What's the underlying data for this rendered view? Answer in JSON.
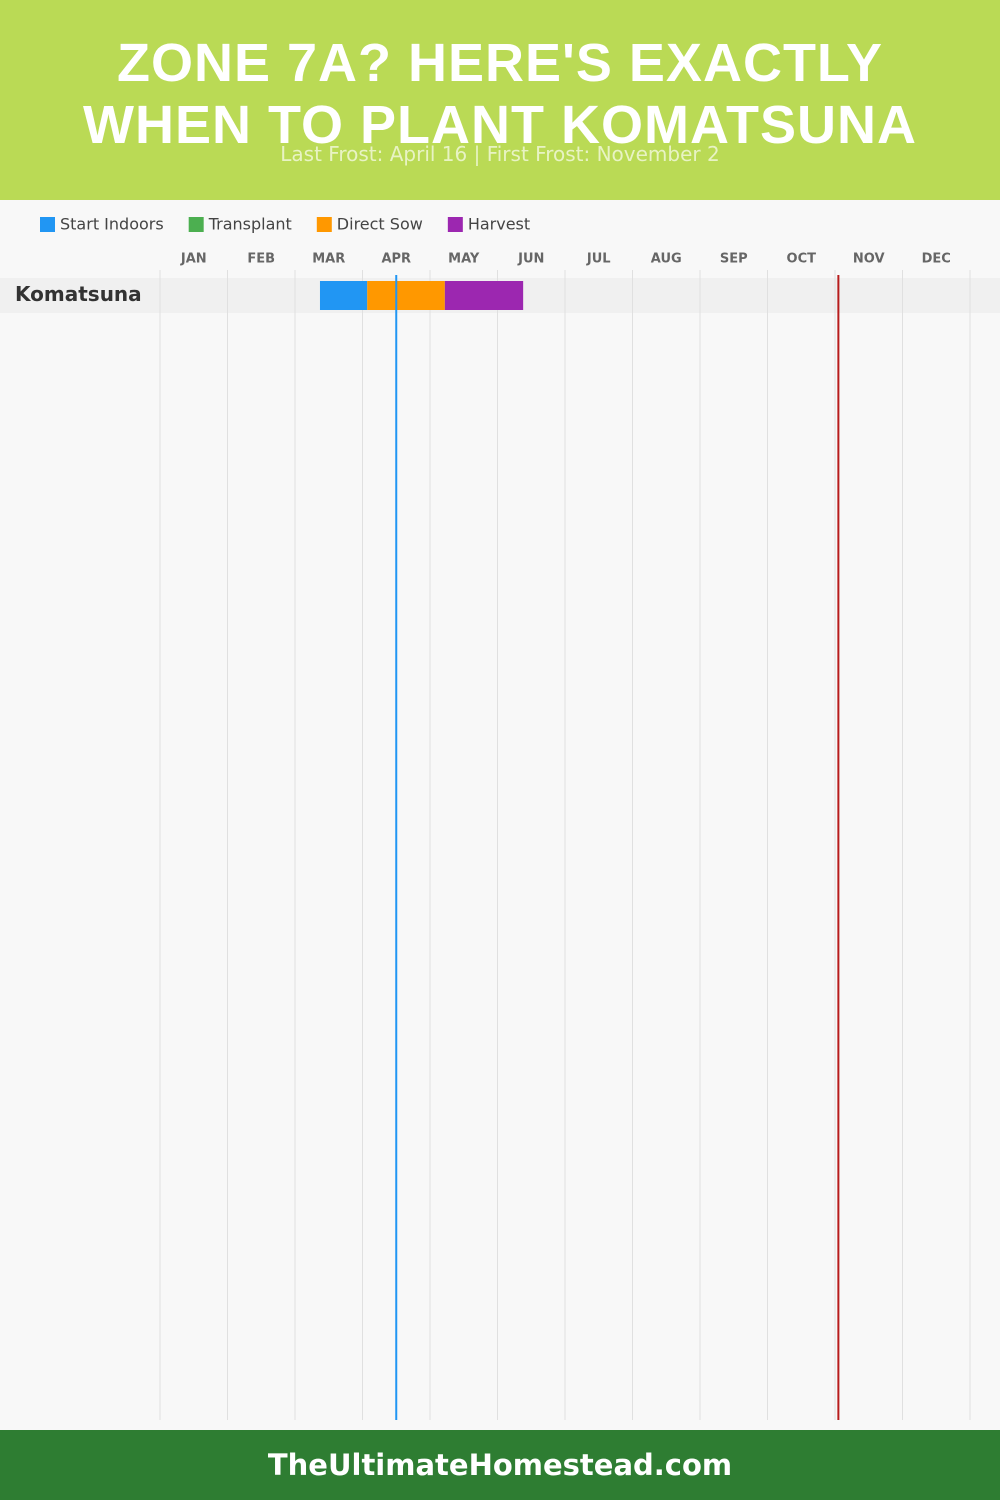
{
  "chart_data": {
    "type": "gantt",
    "title": "ZONE 7A? HERE'S EXACTLY WHEN TO PLANT KOMATSUNA",
    "subtitle": "Last Frost: April 16 | First Frost: November 2",
    "months": [
      "JAN",
      "FEB",
      "MAR",
      "APR",
      "MAY",
      "JUN",
      "JUL",
      "AUG",
      "SEP",
      "OCT",
      "NOV",
      "DEC"
    ],
    "xlim": [
      0,
      12
    ],
    "categories": [
      "Komatsuna"
    ],
    "series": [
      {
        "name": "Start Indoors",
        "color": "#2196f3",
        "values": [
          [
            2.37,
            3.07
          ]
        ]
      },
      {
        "name": "Transplant",
        "color": "#4caf50",
        "values": [
          null
        ]
      },
      {
        "name": "Direct Sow",
        "color": "#ff9800",
        "values": [
          [
            3.07,
            4.22
          ]
        ]
      },
      {
        "name": "Harvest",
        "color": "#9c27b0",
        "values": [
          [
            4.22,
            5.38
          ]
        ]
      }
    ],
    "markers": [
      {
        "value": 3.5,
        "color": "#2196f3"
      },
      {
        "value": 10.05,
        "color": "#b71c1c"
      }
    ],
    "grid": true
  },
  "footer": "TheUltimateHomestead.com"
}
